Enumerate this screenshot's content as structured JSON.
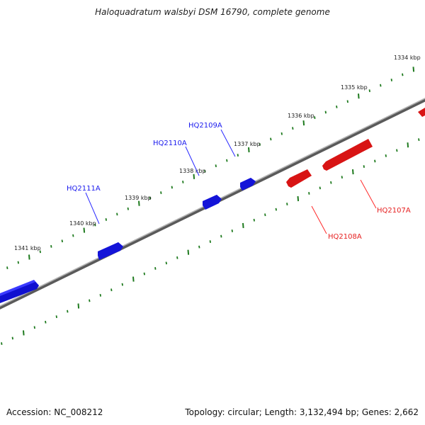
{
  "title": "Haloquadratum walsbyi DSM 16790, complete genome",
  "footer": {
    "accession": "Accession: NC_008212",
    "summary": "Topology: circular; Length: 3,132,494 bp; Genes: 2,662"
  },
  "ruler": {
    "tick_labels": [
      "1334 kbp",
      "1335 kbp",
      "1336 kbp",
      "1337 kbp",
      "1338 kbp",
      "1339 kbp",
      "1340 kbp",
      "1341 kbp"
    ]
  },
  "genes": [
    {
      "name": "HQ2111A",
      "strand": "forward",
      "color": "#1a1aee"
    },
    {
      "name": "HQ2110A",
      "strand": "forward",
      "color": "#1a1aee"
    },
    {
      "name": "HQ2109A",
      "strand": "forward",
      "color": "#1a1aee"
    },
    {
      "name": "HQ2108A",
      "strand": "reverse",
      "color": "#e62020"
    },
    {
      "name": "HQ2107A",
      "strand": "reverse",
      "color": "#e62020"
    }
  ],
  "colors": {
    "backbone": "#808080",
    "tick": "#1e7a1e",
    "forward_gene": "#1a1aee",
    "reverse_gene": "#e62020"
  }
}
